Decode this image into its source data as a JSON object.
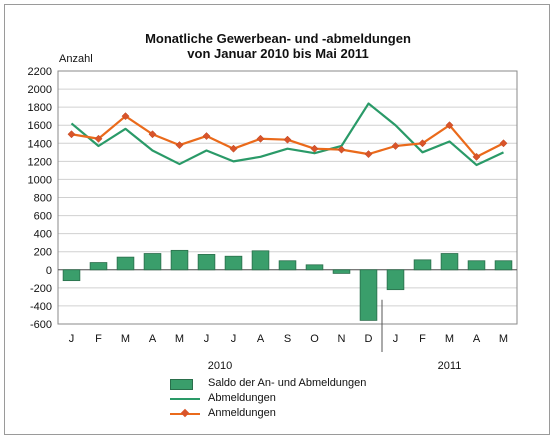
{
  "chart_data": {
    "type": "bar+line",
    "title_line1": "Monatliche Gewerbean- und -abmeldungen",
    "title_line2": "von Januar 2010 bis Mai 2011",
    "ylabel": "Anzahl",
    "ylim": [
      -600,
      2200
    ],
    "yticks": [
      2200,
      2000,
      1800,
      1600,
      1400,
      1200,
      1000,
      800,
      600,
      400,
      200,
      0,
      -200,
      -400,
      -600
    ],
    "categories": [
      "J",
      "F",
      "M",
      "A",
      "M",
      "J",
      "J",
      "A",
      "S",
      "O",
      "N",
      "D",
      "J",
      "F",
      "M",
      "A",
      "M"
    ],
    "year_labels": [
      {
        "label": "2010",
        "from": 0,
        "to": 11
      },
      {
        "label": "2011",
        "from": 12,
        "to": 16
      }
    ],
    "series": [
      {
        "name": "Saldo der An- und Abmeldungen",
        "kind": "bar",
        "color": "#3a9e6b",
        "values": [
          -120,
          80,
          140,
          180,
          215,
          170,
          150,
          210,
          100,
          55,
          -40,
          -560,
          -220,
          110,
          180,
          100,
          100
        ]
      },
      {
        "name": "Abmeldungen",
        "kind": "line",
        "color": "#2a9a68",
        "values": [
          1620,
          1370,
          1560,
          1320,
          1170,
          1320,
          1200,
          1250,
          1340,
          1290,
          1370,
          1840,
          1600,
          1300,
          1420,
          1160,
          1300
        ]
      },
      {
        "name": "Anmeldungen",
        "kind": "line-marker",
        "color": "#ea6a1b",
        "marker_color": "#d9542a",
        "values": [
          1500,
          1450,
          1700,
          1500,
          1380,
          1480,
          1340,
          1450,
          1440,
          1340,
          1330,
          1280,
          1370,
          1400,
          1600,
          1250,
          1400
        ]
      }
    ],
    "grid": true,
    "legend": "bottom"
  }
}
